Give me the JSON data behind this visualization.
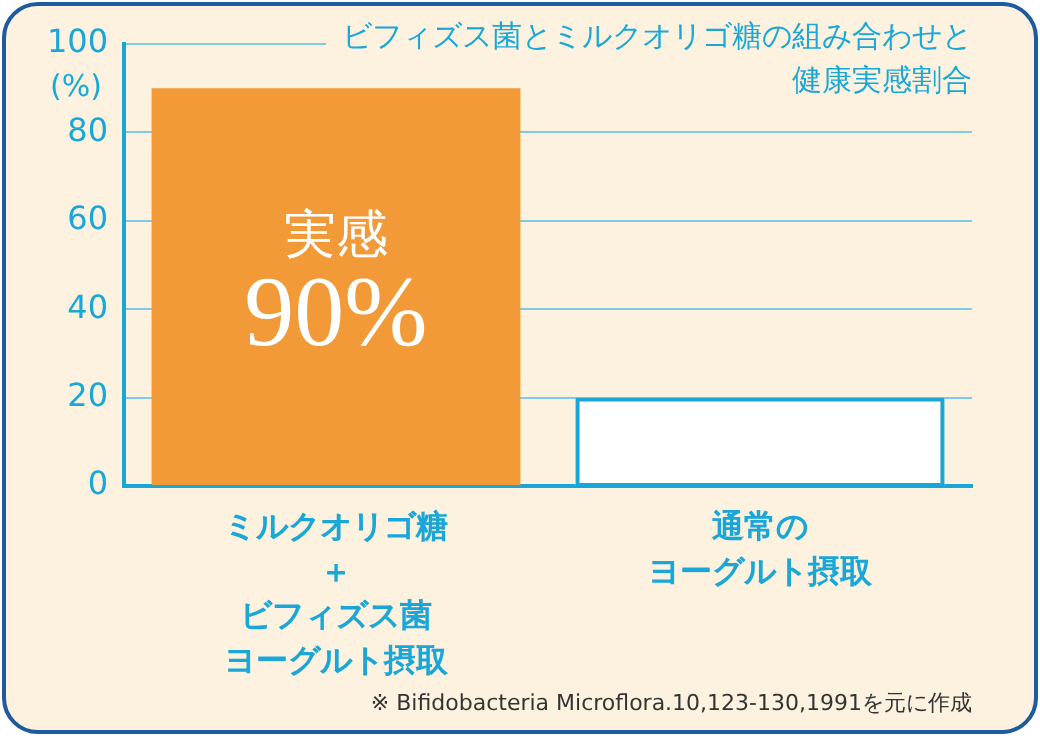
{
  "chart_data": {
    "type": "bar",
    "title": "ビフィズス菌とミルクオリゴ糖の組み合わせと健康実感割合",
    "ylabel": "(%)",
    "categories": [
      "ミルクオリゴ糖＋ビフィズス菌ヨーグルト摂取",
      "通常のヨーグルト摂取"
    ],
    "values": [
      90,
      20
    ],
    "colors": [
      "#f29a38",
      "#ffffff"
    ],
    "value_labels": [
      "90%",
      null
    ],
    "ylim": [
      0,
      100
    ],
    "yticks": [
      0,
      20,
      40,
      60,
      80,
      100
    ],
    "grid": "y",
    "annotations": [
      "実感",
      "※ Bifidobacteria Microflora.10,123-130,1991を元に作成"
    ]
  }
}
